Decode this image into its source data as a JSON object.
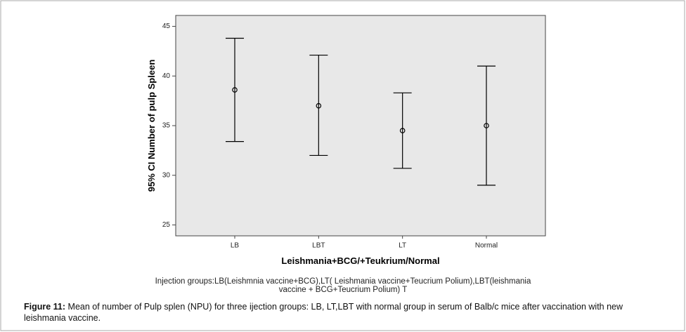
{
  "chart_data": {
    "type": "errorbar",
    "x_label": "Leishmania+BCG/+Teukrium/Normal",
    "y_label": "95% CI Number of pulp Spleen",
    "categories": [
      "LB",
      "LBT",
      "LT",
      "Normal"
    ],
    "series": [
      {
        "name": "Mean",
        "color": "#000000",
        "values": [
          38.6,
          37.0,
          34.5,
          35.0
        ],
        "lower": [
          33.4,
          32.0,
          30.7,
          29.0
        ],
        "upper": [
          43.8,
          42.1,
          38.3,
          41.0
        ]
      }
    ],
    "ylim": [
      23.9,
      46.1
    ],
    "yticks": [
      25,
      30,
      35,
      40,
      45
    ],
    "background": "#e8e8e8",
    "note": [
      "Injection groups:LB(Leishmnia vaccine+BCG),LT( Leishmania vaccine+Teucrium Polium),LBT(leishmania",
      "vaccine + BCG+Teucrium Polium)   T"
    ]
  },
  "caption": {
    "label": "Figure 11:",
    "text": "Mean of number of Pulp splen (NPU) for three ijection groups: LB, LT,LBT with normal group in serum of Balb/c mice after vaccination with new leishmania vaccine."
  }
}
